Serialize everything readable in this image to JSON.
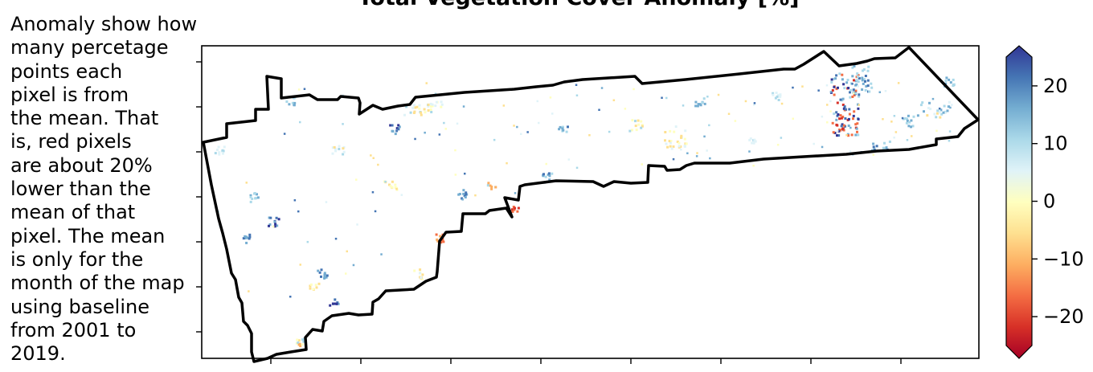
{
  "title": "Total Vegetation Cover Anomaly [%]",
  "note_lines": [
    "Anomaly show how",
    "many percetage",
    "points each",
    "pixel is from",
    "the mean. That",
    "is, red pixels",
    "are about 20%",
    "lower than the",
    "mean of that",
    "pixel. The mean",
    "is only for the",
    "month of the map",
    "using baseline",
    "from 2001 to",
    "2019."
  ],
  "colorbar": {
    "min": -25,
    "max": 25,
    "ticks": [
      20,
      10,
      0,
      -10,
      -20
    ],
    "tick_labels": [
      "20",
      "10",
      "0",
      "−10",
      "−20"
    ],
    "colors": [
      "#a50026",
      "#d73027",
      "#f46d43",
      "#fdae61",
      "#fee090",
      "#ffffbf",
      "#e0f3f8",
      "#abd9e9",
      "#74add1",
      "#4575b4",
      "#313695"
    ],
    "colormap": "RdYlBu"
  },
  "map": {
    "boundary_color": "#000000",
    "background": "#ffffff",
    "y_ticks": 7,
    "x_ticks": 8
  }
}
